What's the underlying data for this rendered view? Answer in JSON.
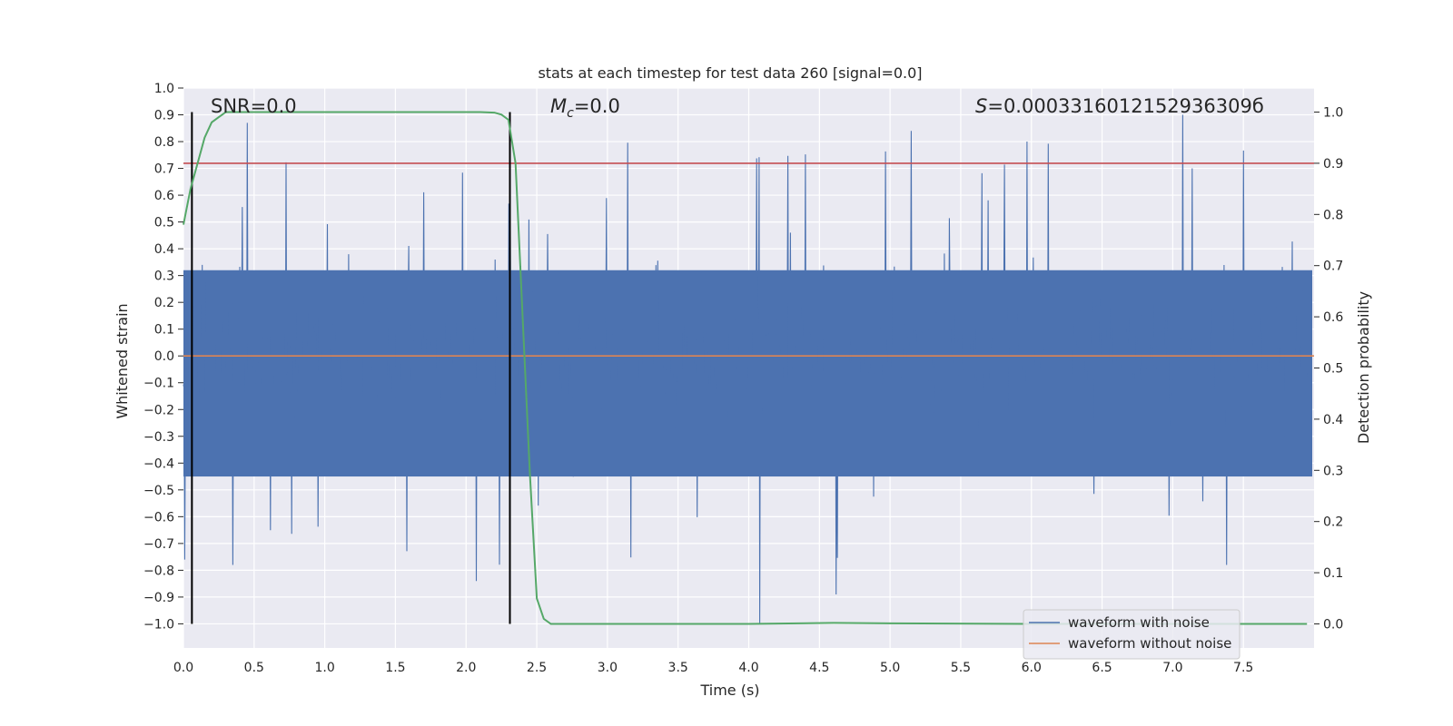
{
  "chart_data": {
    "type": "line",
    "title": "stats at each timestep for test data 260 [signal=0.0]",
    "xlabel": "Time (s)",
    "ylabel": "Whitened strain",
    "y2label": "Detection probability",
    "xlim": [
      0.0,
      8.0
    ],
    "ylim": [
      -1.09,
      1.0
    ],
    "y2lim": [
      -0.047,
      1.047
    ],
    "x_ticks": [
      "0.0",
      "0.5",
      "1.0",
      "1.5",
      "2.0",
      "2.5",
      "3.0",
      "3.5",
      "4.0",
      "4.5",
      "5.0",
      "5.5",
      "6.0",
      "6.5",
      "7.0",
      "7.5"
    ],
    "x_tick_values": [
      0.0,
      0.5,
      1.0,
      1.5,
      2.0,
      2.5,
      3.0,
      3.5,
      4.0,
      4.5,
      5.0,
      5.5,
      6.0,
      6.5,
      7.0,
      7.5
    ],
    "y_ticks": [
      "1.0",
      "0.9",
      "0.8",
      "0.7",
      "0.6",
      "0.5",
      "0.4",
      "0.3",
      "0.2",
      "0.1",
      "0.0",
      "−0.1",
      "−0.2",
      "−0.3",
      "−0.4",
      "−0.5",
      "−0.6",
      "−0.7",
      "−0.8",
      "−0.9",
      "−1.0"
    ],
    "y_tick_values": [
      1.0,
      0.9,
      0.8,
      0.7,
      0.6,
      0.5,
      0.4,
      0.3,
      0.2,
      0.1,
      0.0,
      -0.1,
      -0.2,
      -0.3,
      -0.4,
      -0.5,
      -0.6,
      -0.7,
      -0.8,
      -0.9,
      -1.0
    ],
    "y2_ticks": [
      "1.0",
      "0.9",
      "0.8",
      "0.7",
      "0.6",
      "0.5",
      "0.4",
      "0.3",
      "0.2",
      "0.1",
      "0.0"
    ],
    "y2_tick_values": [
      1.0,
      0.9,
      0.8,
      0.7,
      0.6,
      0.5,
      0.4,
      0.3,
      0.2,
      0.1,
      0.0
    ],
    "annotations": {
      "snr": "SNR=0.0",
      "mc_symbol": "M",
      "mc_sub": "c",
      "mc_value": "=0.0",
      "s_symbol": "S",
      "s_value": "=0.0003316012152936309б"
    },
    "vlines": [
      0.06,
      2.31
    ],
    "threshold_y2": 0.9,
    "series": [
      {
        "name": "waveform with noise",
        "color": "#4c72b0",
        "axis": "left",
        "kind": "noise",
        "amplitude_core": 0.32,
        "count": 1800,
        "peaks": [
          {
            "x": 0.45,
            "y": 0.87
          },
          {
            "x": 0.35,
            "y": -0.78
          },
          {
            "x": 2.07,
            "y": -0.84
          },
          {
            "x": 4.08,
            "y": -1.0
          },
          {
            "x": 4.62,
            "y": -0.89
          },
          {
            "x": 7.07,
            "y": 0.9
          },
          {
            "x": 5.15,
            "y": 0.84
          },
          {
            "x": 5.97,
            "y": 0.8
          },
          {
            "x": 7.38,
            "y": -0.78
          },
          {
            "x": 0.01,
            "y": -0.76
          }
        ]
      },
      {
        "name": "waveform without noise",
        "color": "#dd8452",
        "axis": "left",
        "values_x": [
          0.0,
          8.0
        ],
        "values_y": [
          0.0,
          0.0
        ]
      },
      {
        "name": "detection probability",
        "color": "#55a868",
        "axis": "right",
        "x": [
          0.0,
          0.05,
          0.1,
          0.15,
          0.2,
          0.25,
          0.3,
          0.4,
          0.6,
          1.0,
          1.5,
          2.0,
          2.1,
          2.2,
          2.25,
          2.3,
          2.35,
          2.4,
          2.45,
          2.5,
          2.55,
          2.6,
          3.0,
          4.0,
          4.6,
          5.0,
          6.0,
          7.0,
          7.5,
          7.95
        ],
        "y": [
          0.78,
          0.85,
          0.9,
          0.95,
          0.98,
          0.99,
          1.0,
          1.0,
          1.0,
          1.0,
          1.0,
          1.0,
          1.0,
          0.999,
          0.995,
          0.985,
          0.9,
          0.6,
          0.3,
          0.05,
          0.01,
          0.0,
          0.0,
          0.0,
          0.002,
          0.001,
          0.0,
          0.0,
          0.0,
          0.0
        ]
      }
    ],
    "legend": {
      "placement": "bottom-right",
      "entries": [
        "waveform with noise",
        "waveform without noise"
      ]
    },
    "grid": true,
    "colors": {
      "background": "#eaeaf2",
      "grid": "#ffffff",
      "threshold": "#c44e52",
      "vline": "#000000"
    }
  }
}
